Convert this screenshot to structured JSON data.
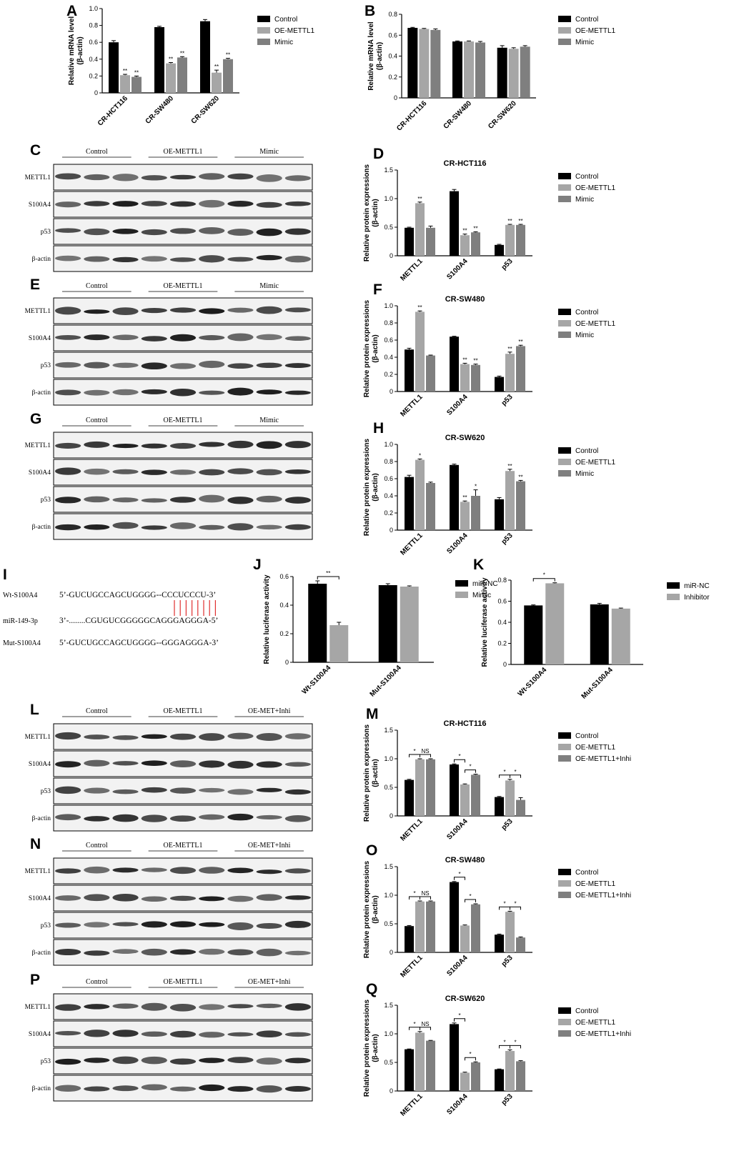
{
  "colors": {
    "control": "#000000",
    "oe": "#a6a6a6",
    "mimic": "#7f7f7f",
    "rowline": "#000000"
  },
  "seq_panel": {
    "label": "I",
    "rows": [
      {
        "name": "Wt-S100A4",
        "seq": "5’-GUCUGCCAGCUGGGG--CCCUCCCU-3’"
      },
      {
        "name": "miR-149-3p",
        "seq": "3’-........CGUGUCGGGGGCAGGGAGGGA-5’"
      },
      {
        "name": "Mut-S100A4",
        "seq": "5’-GUCUGCCAGCUGGGG--GGGAGGGA-3’"
      }
    ]
  },
  "blots": [
    {
      "label": "C",
      "groups": [
        "Control",
        "OE-METTL1",
        "Mimic"
      ],
      "rows": [
        "METTL1",
        "S100A4",
        "p53",
        "β-actin"
      ]
    },
    {
      "label": "E",
      "groups": [
        "Control",
        "OE-METTL1",
        "Mimic"
      ],
      "rows": [
        "METTL1",
        "S100A4",
        "p53",
        "β-actin"
      ]
    },
    {
      "label": "G",
      "groups": [
        "Control",
        "OE-METTL1",
        "Mimic"
      ],
      "rows": [
        "METTL1",
        "S100A4",
        "p53",
        "β-actin"
      ]
    },
    {
      "label": "L",
      "groups": [
        "Control",
        "OE-METTL1",
        "OE-MET+Inhi"
      ],
      "rows": [
        "METTL1",
        "S100A4",
        "p53",
        "β-actin"
      ]
    },
    {
      "label": "N",
      "groups": [
        "Control",
        "OE-METTL1",
        "OE-MET+Inhi"
      ],
      "rows": [
        "METTL1",
        "S100A4",
        "p53",
        "β-actin"
      ]
    },
    {
      "label": "P",
      "groups": [
        "Control",
        "OE-METTL1",
        "OE-MET+Inhi"
      ],
      "rows": [
        "METTL1",
        "S100A4",
        "p53",
        "β-actin"
      ]
    }
  ],
  "chart_data": [
    {
      "label": "A",
      "type": "bar",
      "title": "",
      "ylabel": "Relative mRNA level\n(β-actin)",
      "ylim": [
        0,
        1.0
      ],
      "yticks": [
        0,
        0.2,
        0.4,
        0.6,
        0.8,
        1.0
      ],
      "categories": [
        "CR-HCT116",
        "CR-SW480",
        "CR-SW620"
      ],
      "series": [
        {
          "name": "Control",
          "values": [
            0.6,
            0.78,
            0.85
          ],
          "err": [
            0.02,
            0.01,
            0.02
          ],
          "stars": [
            "",
            "",
            ""
          ]
        },
        {
          "name": "OE-METTL1",
          "values": [
            0.21,
            0.35,
            0.24
          ],
          "err": [
            0.01,
            0.01,
            0.03
          ],
          "stars": [
            "**",
            "**",
            "**"
          ]
        },
        {
          "name": "Mimic",
          "values": [
            0.19,
            0.42,
            0.4
          ],
          "err": [
            0.01,
            0.01,
            0.01
          ],
          "stars": [
            "**",
            "**",
            "**"
          ]
        }
      ],
      "brackets": []
    },
    {
      "label": "B",
      "type": "bar",
      "title": "",
      "ylabel": "Relative mRNA level\n(β-actin)",
      "ylim": [
        0,
        0.8
      ],
      "yticks": [
        0,
        0.2,
        0.4,
        0.6,
        0.8
      ],
      "categories": [
        "CR-HCT116",
        "CR-SW480",
        "CR-SW620"
      ],
      "series": [
        {
          "name": "Control",
          "values": [
            0.67,
            0.54,
            0.48
          ],
          "err": [
            0.005,
            0.005,
            0.02
          ],
          "stars": [
            "",
            "",
            ""
          ]
        },
        {
          "name": "OE-METTL1",
          "values": [
            0.66,
            0.54,
            0.47
          ],
          "err": [
            0.005,
            0.005,
            0.01
          ],
          "stars": [
            "",
            "",
            ""
          ]
        },
        {
          "name": "Mimic",
          "values": [
            0.65,
            0.53,
            0.49
          ],
          "err": [
            0.01,
            0.01,
            0.01
          ],
          "stars": [
            "",
            "",
            ""
          ]
        }
      ],
      "brackets": []
    },
    {
      "label": "D",
      "type": "bar",
      "title": "CR-HCT116",
      "ylabel": "Relative protein expressions\n(β-actin)",
      "ylim": [
        0,
        1.5
      ],
      "yticks": [
        0,
        0.5,
        1.0,
        1.5
      ],
      "categories": [
        "METTL1",
        "S100A4",
        "p53"
      ],
      "series": [
        {
          "name": "Control",
          "values": [
            0.49,
            1.13,
            0.19
          ],
          "err": [
            0.01,
            0.03,
            0.01
          ],
          "stars": [
            "",
            "",
            ""
          ]
        },
        {
          "name": "OE-METTL1",
          "values": [
            0.92,
            0.36,
            0.54
          ],
          "err": [
            0.02,
            0.02,
            0.01
          ],
          "stars": [
            "**",
            "**",
            "**"
          ]
        },
        {
          "name": "Mimic",
          "values": [
            0.49,
            0.41,
            0.54
          ],
          "err": [
            0.03,
            0.01,
            0.01
          ],
          "stars": [
            "",
            "**",
            "**"
          ]
        }
      ],
      "brackets": []
    },
    {
      "label": "F",
      "type": "bar",
      "title": "CR-SW480",
      "ylabel": "Relative protein expressions\n(β-actin)",
      "ylim": [
        0,
        1.0
      ],
      "yticks": [
        0,
        0.2,
        0.4,
        0.6,
        0.8,
        1.0
      ],
      "categories": [
        "METTL1",
        "S100A4",
        "p53"
      ],
      "series": [
        {
          "name": "Control",
          "values": [
            0.49,
            0.64,
            0.17
          ],
          "err": [
            0.015,
            0.005,
            0.01
          ],
          "stars": [
            "",
            "",
            ""
          ]
        },
        {
          "name": "OE-METTL1",
          "values": [
            0.93,
            0.32,
            0.44
          ],
          "err": [
            0.01,
            0.01,
            0.02
          ],
          "stars": [
            "**",
            "**",
            "**"
          ]
        },
        {
          "name": "Mimic",
          "values": [
            0.42,
            0.31,
            0.53
          ],
          "err": [
            0.005,
            0.01,
            0.01
          ],
          "stars": [
            "",
            "**",
            "**"
          ]
        }
      ],
      "brackets": []
    },
    {
      "label": "H",
      "type": "bar",
      "title": "CR-SW620",
      "ylabel": "Relative protein expressions\n(β-actin)",
      "ylim": [
        0,
        1.0
      ],
      "yticks": [
        0,
        0.2,
        0.4,
        0.6,
        0.8,
        1.0
      ],
      "categories": [
        "METTL1",
        "S100A4",
        "p53"
      ],
      "series": [
        {
          "name": "Control",
          "values": [
            0.62,
            0.76,
            0.36
          ],
          "err": [
            0.02,
            0.01,
            0.02
          ],
          "stars": [
            "",
            "",
            ""
          ]
        },
        {
          "name": "OE-METTL1",
          "values": [
            0.82,
            0.33,
            0.69
          ],
          "err": [
            0.01,
            0.01,
            0.02
          ],
          "stars": [
            "*",
            "**",
            "**"
          ]
        },
        {
          "name": "Mimic",
          "values": [
            0.55,
            0.4,
            0.57
          ],
          "err": [
            0.01,
            0.07,
            0.01
          ],
          "stars": [
            "",
            "*",
            "**"
          ]
        }
      ],
      "brackets": []
    },
    {
      "label": "J",
      "type": "bar",
      "title": "",
      "ylabel": "Relative luciferase activity",
      "ylim": [
        0,
        0.6
      ],
      "yticks": [
        0,
        0.2,
        0.4,
        0.6
      ],
      "categories": [
        "Wt-S100A4",
        "Mut-S100A4"
      ],
      "series": [
        {
          "name": "miR-NC",
          "values": [
            0.55,
            0.54
          ],
          "err": [
            0.02,
            0.01
          ],
          "stars": [
            "",
            ""
          ]
        },
        {
          "name": "Mimic",
          "values": [
            0.26,
            0.53
          ],
          "err": [
            0.02,
            0.005
          ],
          "stars": [
            "",
            ""
          ]
        }
      ],
      "brackets": [
        {
          "cat": 0,
          "from": 0,
          "to": 1,
          "text": "**"
        }
      ]
    },
    {
      "label": "K",
      "type": "bar",
      "title": "",
      "ylabel": "Relative luciferase activity",
      "ylim": [
        0,
        0.8
      ],
      "yticks": [
        0,
        0.2,
        0.4,
        0.6,
        0.8
      ],
      "categories": [
        "Wt-S100A4",
        "Mut-S100A4"
      ],
      "series": [
        {
          "name": "miR-NC",
          "values": [
            0.56,
            0.57
          ],
          "err": [
            0.005,
            0.01
          ],
          "stars": [
            "",
            ""
          ]
        },
        {
          "name": "Inhibitor",
          "values": [
            0.77,
            0.53
          ],
          "err": [
            0.005,
            0.005
          ],
          "stars": [
            "",
            ""
          ]
        }
      ],
      "brackets": [
        {
          "cat": 0,
          "from": 0,
          "to": 1,
          "text": "*"
        }
      ]
    },
    {
      "label": "M",
      "type": "bar",
      "title": "CR-HCT116",
      "ylabel": "Relative protein expressions\n(β-actin)",
      "ylim": [
        0,
        1.5
      ],
      "yticks": [
        0,
        0.5,
        1.0,
        1.5
      ],
      "categories": [
        "METTL1",
        "S100A4",
        "p53"
      ],
      "series": [
        {
          "name": "Control",
          "values": [
            0.63,
            0.9,
            0.33
          ],
          "err": [
            0.01,
            0.01,
            0.01
          ],
          "stars": [
            "",
            "",
            ""
          ]
        },
        {
          "name": "OE-METTL1",
          "values": [
            0.99,
            0.55,
            0.62
          ],
          "err": [
            0.01,
            0.01,
            0.02
          ],
          "stars": [
            "",
            "",
            ""
          ]
        },
        {
          "name": "OE-METTL1+Inhi",
          "values": [
            0.99,
            0.72,
            0.28
          ],
          "err": [
            0.01,
            0.01,
            0.04
          ],
          "stars": [
            "",
            "",
            ""
          ]
        }
      ],
      "brackets": [
        {
          "cat": 0,
          "from": 0,
          "to": 1,
          "text": "*"
        },
        {
          "cat": 0,
          "from": 1,
          "to": 2,
          "text": "NS"
        },
        {
          "cat": 1,
          "from": 0,
          "to": 1,
          "text": "*"
        },
        {
          "cat": 1,
          "from": 1,
          "to": 2,
          "text": "*"
        },
        {
          "cat": 2,
          "from": 0,
          "to": 1,
          "text": "*"
        },
        {
          "cat": 2,
          "from": 1,
          "to": 2,
          "text": "*"
        }
      ]
    },
    {
      "label": "O",
      "type": "bar",
      "title": "CR-SW480",
      "ylabel": "Relative protein expressions\n(β-actin)",
      "ylim": [
        0,
        1.5
      ],
      "yticks": [
        0,
        0.5,
        1.0,
        1.5
      ],
      "categories": [
        "METTL1",
        "S100A4",
        "p53"
      ],
      "series": [
        {
          "name": "Control",
          "values": [
            0.46,
            1.23,
            0.31
          ],
          "err": [
            0.01,
            0.01,
            0.01
          ],
          "stars": [
            "",
            "",
            ""
          ]
        },
        {
          "name": "OE-METTL1",
          "values": [
            0.89,
            0.47,
            0.71
          ],
          "err": [
            0.01,
            0.01,
            0.01
          ],
          "stars": [
            "",
            "",
            ""
          ]
        },
        {
          "name": "OE-METTL1+Inhi",
          "values": [
            0.89,
            0.84,
            0.26
          ],
          "err": [
            0.01,
            0.01,
            0.01
          ],
          "stars": [
            "",
            "",
            ""
          ]
        }
      ],
      "brackets": [
        {
          "cat": 0,
          "from": 0,
          "to": 1,
          "text": "*"
        },
        {
          "cat": 0,
          "from": 1,
          "to": 2,
          "text": "NS"
        },
        {
          "cat": 1,
          "from": 0,
          "to": 1,
          "text": "*"
        },
        {
          "cat": 1,
          "from": 1,
          "to": 2,
          "text": "*"
        },
        {
          "cat": 2,
          "from": 0,
          "to": 1,
          "text": "*"
        },
        {
          "cat": 2,
          "from": 1,
          "to": 2,
          "text": "*"
        }
      ]
    },
    {
      "label": "Q",
      "type": "bar",
      "title": "CR-SW620",
      "ylabel": "Relative protein expressions\n(β-actin)",
      "ylim": [
        0,
        1.5
      ],
      "yticks": [
        0,
        0.5,
        1.0,
        1.5
      ],
      "categories": [
        "METTL1",
        "S100A4",
        "p53"
      ],
      "series": [
        {
          "name": "Control",
          "values": [
            0.73,
            1.17,
            0.38
          ],
          "err": [
            0.005,
            0.02,
            0.005
          ],
          "stars": [
            "",
            "",
            ""
          ]
        },
        {
          "name": "OE-METTL1",
          "values": [
            1.02,
            0.32,
            0.7
          ],
          "err": [
            0.02,
            0.01,
            0.02
          ],
          "stars": [
            "",
            "",
            ""
          ]
        },
        {
          "name": "OE-METTL1+Inhi",
          "values": [
            0.88,
            0.5,
            0.52
          ],
          "err": [
            0.005,
            0.01,
            0.01
          ],
          "stars": [
            "",
            "",
            ""
          ]
        }
      ],
      "brackets": [
        {
          "cat": 0,
          "from": 0,
          "to": 1,
          "text": "*"
        },
        {
          "cat": 0,
          "from": 1,
          "to": 2,
          "text": "NS"
        },
        {
          "cat": 1,
          "from": 0,
          "to": 1,
          "text": "*"
        },
        {
          "cat": 1,
          "from": 1,
          "to": 2,
          "text": "*"
        },
        {
          "cat": 2,
          "from": 0,
          "to": 1,
          "text": "*"
        },
        {
          "cat": 2,
          "from": 1,
          "to": 2,
          "text": "*"
        }
      ]
    }
  ]
}
